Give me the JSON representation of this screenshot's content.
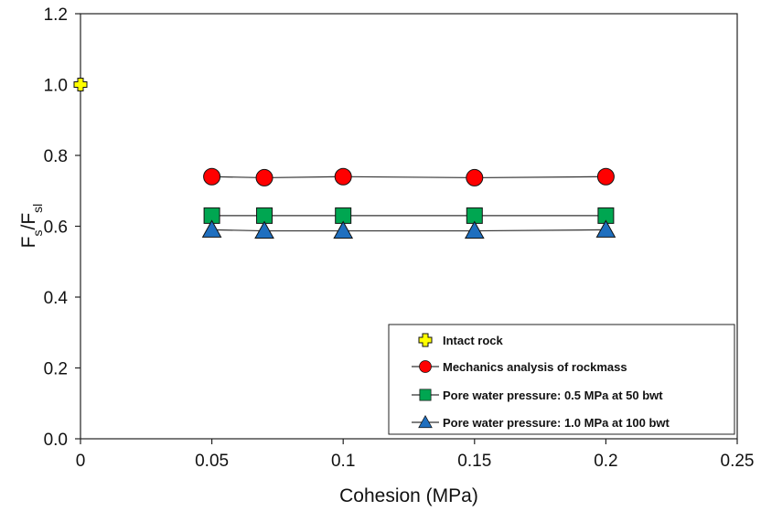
{
  "chart_data": {
    "type": "scatter",
    "title": "",
    "xlabel": "Cohesion (MPa)",
    "ylabel_main": "F",
    "ylabel_sub1": "s",
    "ylabel_sep": "/F",
    "ylabel_sub2": "sl",
    "xlim": [
      0,
      0.25
    ],
    "ylim": [
      0,
      1.2
    ],
    "x_ticks": [
      0,
      0.05,
      0.1,
      0.15,
      0.2,
      0.25
    ],
    "x_tick_labels": [
      "0",
      "0.05",
      "0.1",
      "0.15",
      "0.2",
      "0.25"
    ],
    "y_ticks": [
      0,
      0.2,
      0.4,
      0.6,
      0.8,
      1.0,
      1.2
    ],
    "y_tick_labels": [
      "0.0",
      "0.2",
      "0.4",
      "0.6",
      "0.8",
      "1.0",
      "1.2"
    ],
    "grid": false,
    "legend_position": "bottom-right",
    "series": [
      {
        "name": "Intact rock",
        "marker": "plus",
        "color": "#ffff00",
        "line": false,
        "x": [
          0
        ],
        "y": [
          1.0
        ]
      },
      {
        "name": "Mechanics analysis of rockmass",
        "marker": "circle",
        "color": "#ff0000",
        "line": true,
        "x": [
          0.05,
          0.07,
          0.1,
          0.15,
          0.2
        ],
        "y": [
          0.74,
          0.737,
          0.74,
          0.737,
          0.74
        ]
      },
      {
        "name": "Pore water pressure: 0.5 MPa at 50 bwt",
        "marker": "square",
        "color": "#00a651",
        "line": true,
        "x": [
          0.05,
          0.07,
          0.1,
          0.15,
          0.2
        ],
        "y": [
          0.63,
          0.63,
          0.63,
          0.63,
          0.63
        ]
      },
      {
        "name": "Pore water pressure: 1.0 MPa at 100 bwt",
        "marker": "triangle",
        "color": "#1f6fbf",
        "line": true,
        "x": [
          0.05,
          0.07,
          0.1,
          0.15,
          0.2
        ],
        "y": [
          0.59,
          0.587,
          0.587,
          0.587,
          0.59
        ]
      }
    ]
  }
}
